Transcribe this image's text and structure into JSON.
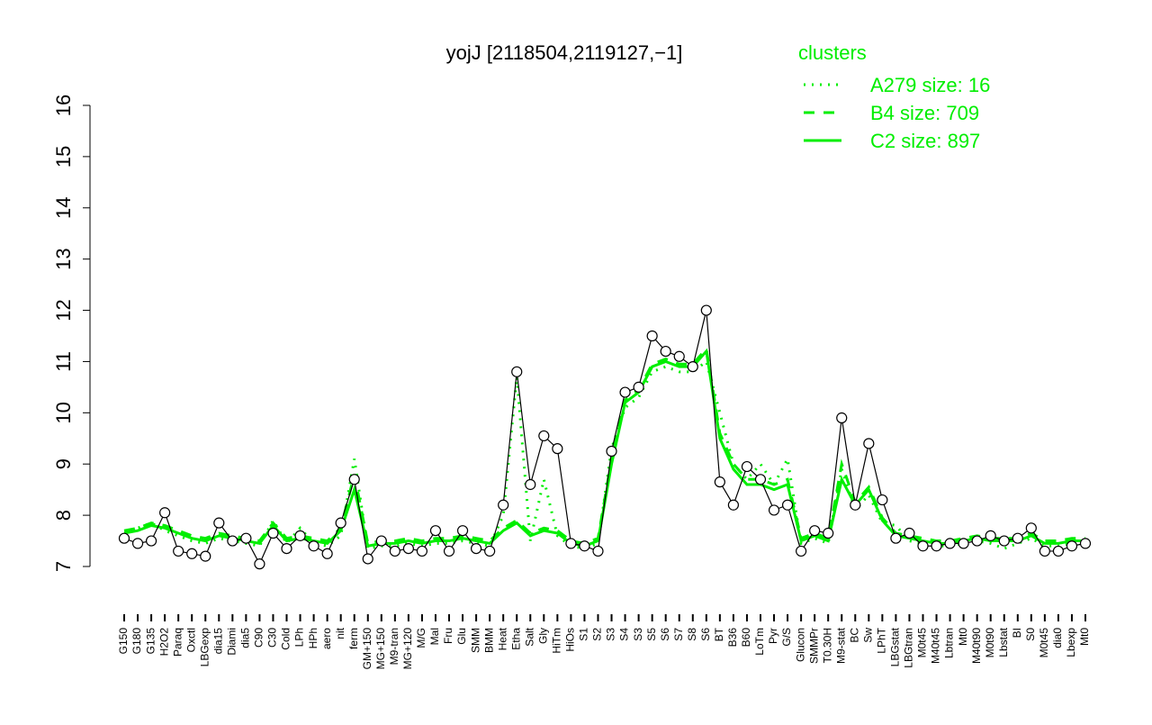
{
  "chart_data": {
    "type": "line",
    "title": "yojJ [2118504,2119127,−1]",
    "legend_title": "clusters",
    "legend_position": "top-right",
    "categories": [
      "G150",
      "G180",
      "G135",
      "H2O2",
      "Paraq",
      "Oxctl",
      "LBGexp",
      "dia15",
      "Diami",
      "dia5",
      "C90",
      "C30",
      "Cold",
      "LPh",
      "HPh",
      "aero",
      "nit",
      "ferm",
      "GM+150",
      "MG+150",
      "M9-tran",
      "MG+120",
      "M/G",
      "Mal",
      "Fru",
      "Glu",
      "SMM",
      "BMM",
      "Heat",
      "Etha",
      "Salt",
      "Gly",
      "HiTm",
      "HiOs",
      "S1",
      "S2",
      "S3",
      "S4",
      "S3",
      "S5",
      "S6",
      "S7",
      "S8",
      "S6",
      "BT",
      "B36",
      "B60",
      "LoTm",
      "Pyr",
      "G/S",
      "Glucon",
      "SMMPr",
      "T0.30H",
      "M9-stat",
      "BC",
      "Sw",
      "LPhT",
      "LBGstat",
      "LBGtran",
      "M0t45",
      "M40t45",
      "Lbtran",
      "Mt0",
      "M40t90",
      "M0t90",
      "Lbstat",
      "BI",
      "S0",
      "M0t45",
      "dia0",
      "Lbexp",
      "Mt0"
    ],
    "values": [
      7.55,
      7.45,
      7.5,
      8.05,
      7.3,
      7.25,
      7.2,
      7.85,
      7.5,
      7.55,
      7.05,
      7.65,
      7.35,
      7.6,
      7.4,
      7.25,
      7.85,
      8.7,
      7.15,
      7.5,
      7.3,
      7.35,
      7.3,
      7.7,
      7.3,
      7.7,
      7.35,
      7.3,
      8.2,
      10.8,
      8.6,
      9.55,
      9.3,
      7.45,
      7.4,
      7.3,
      9.25,
      10.4,
      10.5,
      11.5,
      11.2,
      11.1,
      10.9,
      12.0,
      8.65,
      8.2,
      8.95,
      8.7,
      8.1,
      8.2,
      7.3,
      7.7,
      7.65,
      9.9,
      8.2,
      9.4,
      8.3,
      7.55,
      7.65,
      7.4,
      7.4,
      7.45,
      7.45,
      7.5,
      7.6,
      7.5,
      7.55,
      7.75,
      7.3,
      7.3,
      7.4,
      7.45
    ],
    "color": "#000000",
    "marker_fill": "#ffffff",
    "series": [
      {
        "name": "A279 size: 16",
        "color": "#00ee00",
        "dash": "dotted",
        "values": [
          7.6,
          7.75,
          7.85,
          7.7,
          7.6,
          7.5,
          7.45,
          7.55,
          7.5,
          7.45,
          7.4,
          7.9,
          7.45,
          7.75,
          7.45,
          7.4,
          7.6,
          9.1,
          7.35,
          7.4,
          7.4,
          7.45,
          7.4,
          7.45,
          7.45,
          7.5,
          7.45,
          7.4,
          8.0,
          10.7,
          7.5,
          8.7,
          7.6,
          7.4,
          7.35,
          7.45,
          9.3,
          10.1,
          10.3,
          10.8,
          10.9,
          10.8,
          10.8,
          11.0,
          10.0,
          9.0,
          8.7,
          9.0,
          8.6,
          9.1,
          7.45,
          7.55,
          7.45,
          8.9,
          8.1,
          8.4,
          7.85,
          7.8,
          7.5,
          7.45,
          7.4,
          7.4,
          7.45,
          7.5,
          7.45,
          7.35,
          7.45,
          7.55,
          7.4,
          7.4,
          7.45,
          7.45
        ]
      },
      {
        "name": "B4 size: 709",
        "color": "#00ee00",
        "dash": "dashed",
        "values": [
          7.7,
          7.75,
          7.85,
          7.8,
          7.7,
          7.6,
          7.55,
          7.65,
          7.6,
          7.55,
          7.5,
          7.85,
          7.55,
          7.6,
          7.55,
          7.5,
          7.75,
          8.8,
          7.45,
          7.5,
          7.5,
          7.55,
          7.5,
          7.55,
          7.55,
          7.6,
          7.55,
          7.5,
          7.75,
          7.9,
          7.65,
          7.75,
          7.7,
          7.5,
          7.45,
          7.55,
          9.1,
          10.25,
          10.45,
          10.95,
          11.05,
          10.95,
          10.95,
          11.25,
          9.6,
          9.0,
          8.7,
          8.7,
          8.6,
          8.7,
          7.55,
          7.65,
          7.55,
          9.0,
          8.25,
          8.55,
          7.95,
          7.65,
          7.6,
          7.55,
          7.5,
          7.5,
          7.55,
          7.6,
          7.55,
          7.55,
          7.55,
          7.65,
          7.5,
          7.5,
          7.55,
          7.55
        ]
      },
      {
        "name": "C2 size: 897",
        "color": "#00ee00",
        "dash": "solid",
        "values": [
          7.65,
          7.7,
          7.8,
          7.75,
          7.65,
          7.55,
          7.5,
          7.6,
          7.55,
          7.5,
          7.45,
          7.8,
          7.5,
          7.55,
          7.5,
          7.45,
          7.7,
          8.5,
          7.4,
          7.45,
          7.45,
          7.5,
          7.45,
          7.5,
          7.5,
          7.55,
          7.5,
          7.45,
          7.7,
          7.85,
          7.6,
          7.7,
          7.65,
          7.45,
          7.4,
          7.5,
          9.0,
          10.2,
          10.4,
          10.9,
          11.0,
          10.9,
          10.9,
          11.2,
          9.5,
          8.9,
          8.6,
          8.6,
          8.5,
          8.6,
          7.5,
          7.6,
          7.5,
          8.7,
          8.2,
          8.5,
          7.9,
          7.6,
          7.55,
          7.5,
          7.45,
          7.45,
          7.5,
          7.55,
          7.5,
          7.5,
          7.5,
          7.6,
          7.45,
          7.45,
          7.5,
          7.5
        ]
      }
    ],
    "ylim": [
      7,
      16
    ],
    "yticks": [
      7,
      8,
      9,
      10,
      11,
      12,
      13,
      14,
      15,
      16
    ],
    "grid": false
  }
}
